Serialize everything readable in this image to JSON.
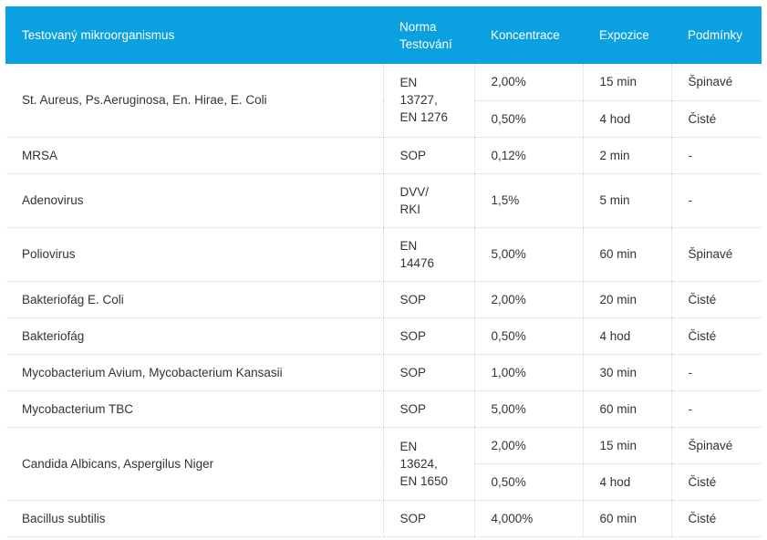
{
  "header": {
    "organism": "Testovaný mikroorganismus",
    "norm": "Norma\nTestování",
    "concentration": "Koncentrace",
    "exposure": "Expozice",
    "conditions": "Podmínky"
  },
  "rows": [
    {
      "organism": "St. Aureus, Ps.Aeruginosa, En.  Hirae, E. Coli",
      "norm": "EN\n13727,\nEN 1276",
      "sub": [
        {
          "concentration": "2,00%",
          "exposure": "15 min",
          "conditions": "Špinavé"
        },
        {
          "concentration": "0,50%",
          "exposure": "4 hod",
          "conditions": "Čisté"
        }
      ]
    },
    {
      "organism": "MRSA",
      "norm": "SOP",
      "concentration": "0,12%",
      "exposure": "2 min",
      "conditions": "-"
    },
    {
      "organism": "Adenovirus",
      "norm": "DVV/\nRKI",
      "concentration": "1,5%",
      "exposure": "5 min",
      "conditions": "-"
    },
    {
      "organism": "Poliovirus",
      "norm": "EN\n14476",
      "concentration": "5,00%",
      "exposure": "60 min",
      "conditions": "Špinavé"
    },
    {
      "organism": "Bakteriofág E. Coli",
      "norm": "SOP",
      "concentration": "2,00%",
      "exposure": "20 min",
      "conditions": "Čisté"
    },
    {
      "organism": "Bakteriofág",
      "norm": "SOP",
      "concentration": "0,50%",
      "exposure": "4 hod",
      "conditions": "Čisté"
    },
    {
      "organism": "Mycobacterium Avium, Mycobacterium Kansasii",
      "norm": "SOP",
      "concentration": "1,00%",
      "exposure": "30 min",
      "conditions": "-"
    },
    {
      "organism": "Mycobacterium TBC",
      "norm": "SOP",
      "concentration": "5,00%",
      "exposure": "60 min",
      "conditions": "-"
    },
    {
      "organism": "Candida Albicans, Aspergilus Niger",
      "norm": "EN\n13624,\nEN 1650",
      "sub": [
        {
          "concentration": "2,00%",
          "exposure": "15 min",
          "conditions": "Špinavé"
        },
        {
          "concentration": "0,50%",
          "exposure": "4 hod",
          "conditions": "Čisté"
        }
      ]
    },
    {
      "organism": "Bacillus subtilis",
      "norm": "SOP",
      "concentration": "4,000%",
      "exposure": "60 min",
      "conditions": "Čisté"
    }
  ]
}
